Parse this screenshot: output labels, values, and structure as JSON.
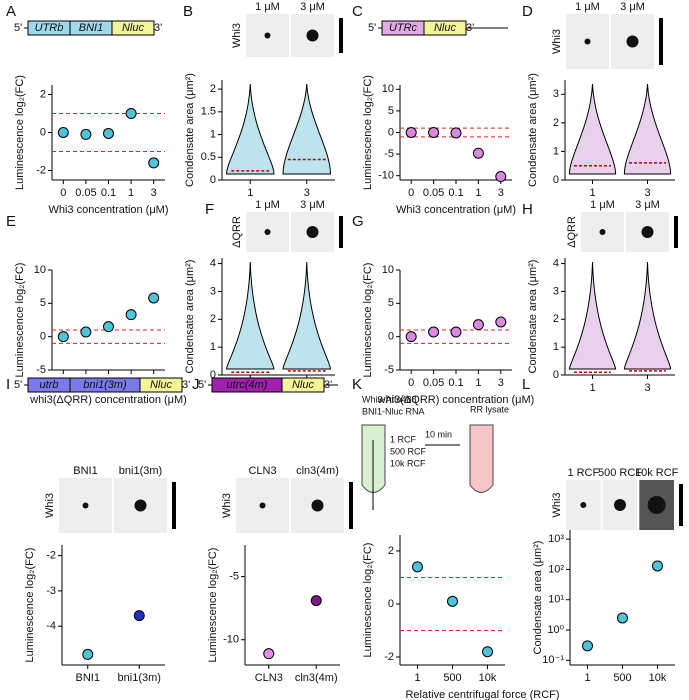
{
  "chart_data": [
    {
      "panel": "A",
      "type": "dot",
      "construct": [
        "5'",
        "UTRb",
        "BNI1",
        "Nluc",
        "3'"
      ],
      "construct_colors": [
        "#9ed8ea",
        "#9ed8ea",
        "#f4f49a"
      ],
      "ylabel": "Luminescence log₂(FC)",
      "xlabel": "Whi3 concentration (μM)",
      "categories": [
        "0",
        "0.05",
        "0.1",
        "1",
        "3"
      ],
      "values": [
        0,
        -0.1,
        -0.05,
        1.0,
        -1.6
      ],
      "color": "#4fc3d8",
      "ylim": [
        -2.5,
        2.5
      ],
      "yticks": [
        -2,
        0,
        2
      ],
      "thresholds": [
        1,
        -1
      ]
    },
    {
      "panel": "B",
      "type": "violin",
      "image_labels": [
        "1 μM",
        "3 μM"
      ],
      "image_row_label": "Whi3",
      "ylabel": "Condensate area (μm²)",
      "categories": [
        "1",
        "3"
      ],
      "values": [
        0.2,
        0.45
      ],
      "color": "#6cc4d6",
      "ylim": [
        0,
        2.2
      ],
      "yticks": [
        0,
        0.5,
        1,
        1.5,
        2
      ]
    },
    {
      "panel": "C",
      "type": "dot",
      "construct": [
        "5'",
        "UTRc",
        "Nluc",
        "3'"
      ],
      "construct_colors": [
        "#e4a8e8",
        "#f4f49a"
      ],
      "ylabel": "Luminescence log₂(FC)",
      "xlabel": "Whi3 concentration (μM)",
      "categories": [
        "0",
        "0.05",
        "0.1",
        "1",
        "3"
      ],
      "values": [
        0,
        0,
        -0.1,
        -4.8,
        -10.2
      ],
      "color": "#d98ae0",
      "ylim": [
        -11,
        11
      ],
      "yticks": [
        -10,
        -5,
        0,
        5,
        10
      ],
      "thresholds": [
        1,
        -1
      ]
    },
    {
      "panel": "D",
      "type": "violin",
      "image_labels": [
        "1 μM",
        "3 μM"
      ],
      "image_row_label": "Whi3",
      "ylabel": "Condensate area (μm²)",
      "categories": [
        "1",
        "3"
      ],
      "values": [
        0.5,
        0.6
      ],
      "color": "#cf9ad6",
      "ylim": [
        0,
        3.5
      ],
      "yticks": [
        0,
        1,
        2,
        3
      ]
    },
    {
      "panel": "E",
      "type": "dot",
      "ylabel": "Luminescence log₂(FC)",
      "xlabel": "whi3(ΔQRR) concentration (μM)",
      "categories": [
        "0",
        "0.05",
        "0.1",
        "1",
        "3"
      ],
      "values": [
        0,
        0.7,
        1.5,
        3.3,
        5.8
      ],
      "color": "#4fc3d8",
      "ylim": [
        -5,
        10
      ],
      "yticks": [
        -5,
        0,
        5,
        10
      ],
      "thresholds": [
        1,
        -1
      ]
    },
    {
      "panel": "F",
      "type": "violin",
      "image_labels": [
        "1 μM",
        "3 μM"
      ],
      "image_row_label": "ΔQRR",
      "ylabel": "Condensate area (μm²)",
      "categories": [
        "1",
        "3"
      ],
      "values": [
        0.1,
        0.15
      ],
      "color": "#6cc4d6",
      "ylim": [
        0,
        4.2
      ],
      "yticks": [
        0,
        1,
        2,
        3,
        4
      ]
    },
    {
      "panel": "G",
      "type": "dot",
      "ylabel": "Luminescence log₂(FC)",
      "xlabel": "whi3(ΔQRR) concentration (μM)",
      "categories": [
        "0",
        "0.05",
        "0.1",
        "1",
        "3"
      ],
      "values": [
        0,
        0.7,
        0.7,
        1.8,
        2.2
      ],
      "color": "#d98ae0",
      "ylim": [
        -5,
        10
      ],
      "yticks": [
        -5,
        0,
        5,
        10
      ],
      "thresholds": [
        1,
        -1
      ]
    },
    {
      "panel": "H",
      "type": "violin",
      "image_labels": [
        "1 μM",
        "3 μM"
      ],
      "image_row_label": "ΔQRR",
      "ylabel": "Condensate area (μm²)",
      "categories": [
        "1",
        "3"
      ],
      "values": [
        0.1,
        0.15
      ],
      "color": "#cf9ad6",
      "ylim": [
        0,
        4.2
      ],
      "yticks": [
        0,
        1,
        2,
        3,
        4
      ]
    },
    {
      "panel": "I",
      "type": "dot",
      "construct": [
        "5'",
        "utrb",
        "bni1(3m)",
        "Nluc",
        "3'"
      ],
      "construct_colors": [
        "#7b7be8",
        "#7b7be8",
        "#f4f49a"
      ],
      "image_labels": [
        "BNI1",
        "bni1(3m)"
      ],
      "image_row_label": "Whi3",
      "ylabel": "Luminescence log₂(FC)",
      "categories": [
        "BNI1",
        "bni1(3m)"
      ],
      "values": [
        -4.8,
        -3.7
      ],
      "colors": [
        "#4fc3d8",
        "#2030c0"
      ],
      "ylim": [
        -5.1,
        -1.7
      ],
      "yticks": [
        -4,
        -3,
        -2
      ]
    },
    {
      "panel": "J",
      "type": "dot",
      "construct": [
        "5'",
        "utrc(4m)",
        "Nluc",
        "3'"
      ],
      "construct_colors": [
        "#a020b0",
        "#f4f49a"
      ],
      "image_labels": [
        "CLN3",
        "cln3(4m)"
      ],
      "image_row_label": "Whi3",
      "ylabel": "Luminescence log₂(FC)",
      "categories": [
        "CLN3",
        "cln3(4m)"
      ],
      "values": [
        -11.1,
        -6.9
      ],
      "colors": [
        "#e08ee8",
        "#7a1a8a"
      ],
      "ylim": [
        -12,
        -2.5
      ],
      "yticks": [
        -10,
        -5
      ]
    },
    {
      "panel": "K",
      "type": "dot",
      "diagram_labels": [
        "Whi3-Atto488",
        "BNI1-Nluc RNA",
        "1 RCF",
        "500 RCF",
        "10k RCF",
        "10 min",
        "RR lysate"
      ],
      "ylabel": "Luminescence log₂(FC)",
      "xlabel": "Relative centrifugal force (RCF)",
      "categories": [
        "1",
        "500",
        "10k"
      ],
      "values": [
        1.4,
        0.1,
        -1.8
      ],
      "color": "#4fc3d8",
      "ylim": [
        -2.3,
        2.6
      ],
      "yticks": [
        -2,
        0,
        2
      ],
      "thresholds": [
        1,
        -1
      ]
    },
    {
      "panel": "L",
      "type": "dot",
      "log": true,
      "image_labels": [
        "1 RCF",
        "500 RCF",
        "10k RCF"
      ],
      "image_row_label": "Whi3",
      "ylabel": "Condensate area (μm²)",
      "categories": [
        "1",
        "500",
        "10k"
      ],
      "values": [
        0.3,
        2.5,
        130
      ],
      "color": "#4fc3d8",
      "ylim": [
        0.07,
        2000
      ],
      "yticks": [
        {
          "value": 0.1,
          "label": "10⁻¹"
        },
        {
          "value": 1,
          "label": "10⁰"
        },
        {
          "value": 10,
          "label": "10¹"
        },
        {
          "value": 100,
          "label": "10²"
        },
        {
          "value": 1000,
          "label": "10³"
        }
      ]
    }
  ]
}
